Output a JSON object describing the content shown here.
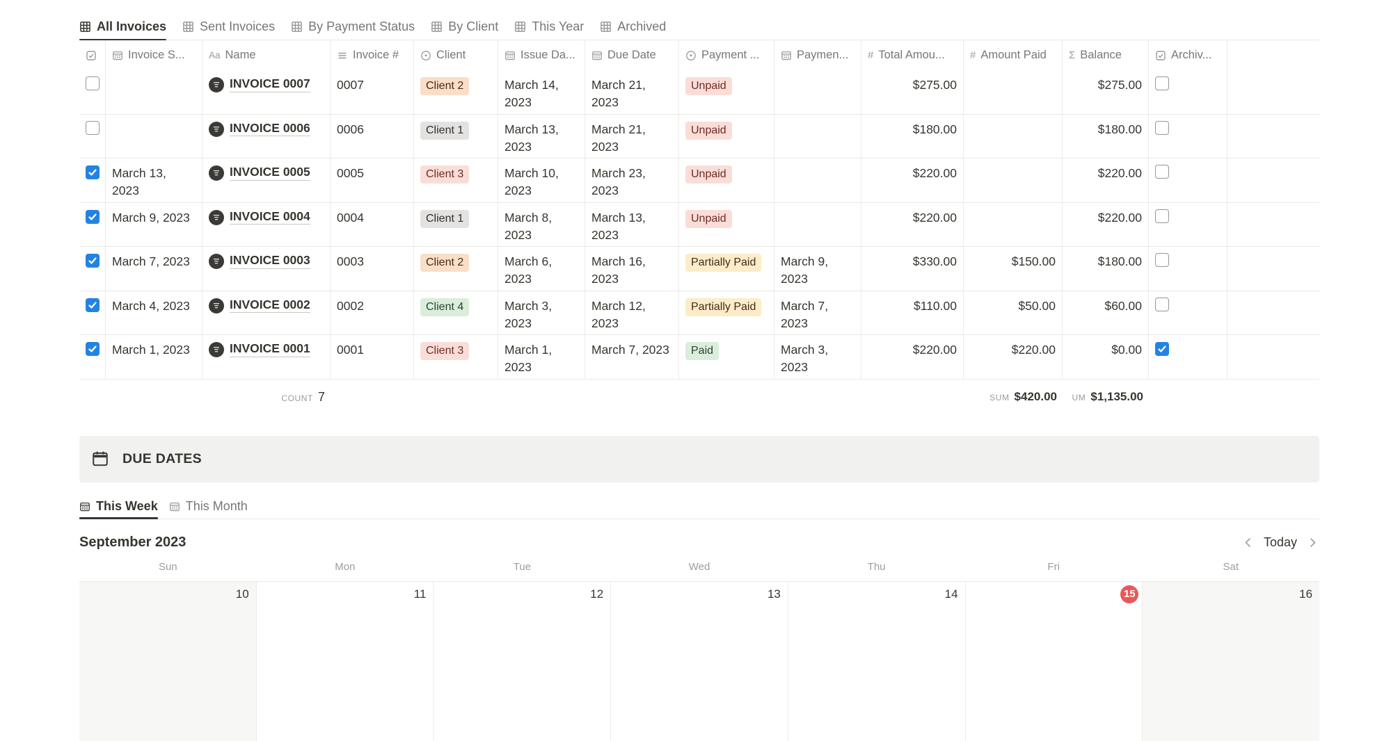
{
  "palette": {
    "accent_blue": "#2383E2",
    "badge_red": "#EB5757",
    "tag": {
      "red": {
        "bg": "#FBDDD8",
        "fg": "#6E2B25"
      },
      "orange": {
        "bg": "#FADEC9",
        "fg": "#49290E"
      },
      "gray": {
        "bg": "#E3E2E0",
        "fg": "#32302C"
      },
      "green": {
        "bg": "#DBEDDB",
        "fg": "#2A4336"
      },
      "yellow": {
        "bg": "#FDECC8",
        "fg": "#402C1B"
      }
    }
  },
  "view_tabs": [
    {
      "label": "All Invoices",
      "active": true
    },
    {
      "label": "Sent Invoices",
      "active": false
    },
    {
      "label": "By Payment Status",
      "active": false
    },
    {
      "label": "By Client",
      "active": false
    },
    {
      "label": "This Year",
      "active": false
    },
    {
      "label": "Archived",
      "active": false
    }
  ],
  "table": {
    "columns": [
      {
        "id": "select",
        "label": "",
        "icon": "checkbox-icon"
      },
      {
        "id": "sent",
        "label": "Invoice S...",
        "icon": "calendar-icon"
      },
      {
        "id": "name",
        "label": "Name",
        "icon": "text-icon"
      },
      {
        "id": "number",
        "label": "Invoice #",
        "icon": "list-icon"
      },
      {
        "id": "client",
        "label": "Client",
        "icon": "select-icon"
      },
      {
        "id": "issue",
        "label": "Issue Da...",
        "icon": "calendar-icon"
      },
      {
        "id": "due",
        "label": "Due Date",
        "icon": "calendar-icon"
      },
      {
        "id": "status",
        "label": "Payment ...",
        "icon": "select-icon"
      },
      {
        "id": "payment_date",
        "label": "Paymen...",
        "icon": "calendar-icon"
      },
      {
        "id": "total",
        "label": "Total Amou...",
        "icon": "number-icon"
      },
      {
        "id": "amount_paid",
        "label": "Amount Paid",
        "icon": "number-icon"
      },
      {
        "id": "balance",
        "label": "Balance",
        "icon": "formula-icon"
      },
      {
        "id": "archived",
        "label": "Archiv...",
        "icon": "checkbox-icon"
      },
      {
        "id": "spacer",
        "label": "",
        "icon": ""
      }
    ],
    "rows": [
      {
        "checked": false,
        "sent": "",
        "name": "INVOICE 0007",
        "number": "0007",
        "client": "Client 2",
        "client_color": "orange",
        "issue": "March 14, 2023",
        "due": "March 21, 2023",
        "status": "Unpaid",
        "status_color": "red",
        "payment_date": "",
        "total": "$275.00",
        "amount_paid": "",
        "balance": "$275.00",
        "archived": false
      },
      {
        "checked": false,
        "sent": "",
        "name": "INVOICE 0006",
        "number": "0006",
        "client": "Client 1",
        "client_color": "gray",
        "issue": "March 13, 2023",
        "due": "March 21, 2023",
        "status": "Unpaid",
        "status_color": "red",
        "payment_date": "",
        "total": "$180.00",
        "amount_paid": "",
        "balance": "$180.00",
        "archived": false
      },
      {
        "checked": true,
        "sent": "March 13, 2023",
        "name": "INVOICE 0005",
        "number": "0005",
        "client": "Client 3",
        "client_color": "red",
        "issue": "March 10, 2023",
        "due": "March 23, 2023",
        "status": "Unpaid",
        "status_color": "red",
        "payment_date": "",
        "total": "$220.00",
        "amount_paid": "",
        "balance": "$220.00",
        "archived": false
      },
      {
        "checked": true,
        "sent": "March 9, 2023",
        "name": "INVOICE 0004",
        "number": "0004",
        "client": "Client 1",
        "client_color": "gray",
        "issue": "March 8, 2023",
        "due": "March 13, 2023",
        "status": "Unpaid",
        "status_color": "red",
        "payment_date": "",
        "total": "$220.00",
        "amount_paid": "",
        "balance": "$220.00",
        "archived": false
      },
      {
        "checked": true,
        "sent": "March 7, 2023",
        "name": "INVOICE 0003",
        "number": "0003",
        "client": "Client 2",
        "client_color": "orange",
        "issue": "March 6, 2023",
        "due": "March 16, 2023",
        "status": "Partially Paid",
        "status_color": "yellow",
        "payment_date": "March 9, 2023",
        "total": "$330.00",
        "amount_paid": "$150.00",
        "balance": "$180.00",
        "archived": false
      },
      {
        "checked": true,
        "sent": "March 4, 2023",
        "name": "INVOICE 0002",
        "number": "0002",
        "client": "Client 4",
        "client_color": "green",
        "issue": "March 3, 2023",
        "due": "March 12, 2023",
        "status": "Partially Paid",
        "status_color": "yellow",
        "payment_date": "March 7, 2023",
        "total": "$110.00",
        "amount_paid": "$50.00",
        "balance": "$60.00",
        "archived": false
      },
      {
        "checked": true,
        "sent": "March 1, 2023",
        "name": "INVOICE 0001",
        "number": "0001",
        "client": "Client 3",
        "client_color": "red",
        "issue": "March 1, 2023",
        "due": "March 7, 2023",
        "status": "Paid",
        "status_color": "green",
        "payment_date": "March 3, 2023",
        "total": "$220.00",
        "amount_paid": "$220.00",
        "balance": "$0.00",
        "archived": true
      }
    ],
    "footer": {
      "count_label": "COUNT",
      "count_value": "7",
      "sum_label": "SUM",
      "sum_value": "$420.00",
      "sum2_label": "UM",
      "sum2_value": "$1,135.00"
    }
  },
  "due_dates": {
    "title": "DUE DATES",
    "tabs": [
      {
        "label": "This Week",
        "active": true
      },
      {
        "label": "This Month",
        "active": false
      }
    ]
  },
  "calendar": {
    "month": "September 2023",
    "today_label": "Today",
    "weekdays": [
      "Sun",
      "Mon",
      "Tue",
      "Wed",
      "Thu",
      "Fri",
      "Sat"
    ],
    "days": [
      {
        "label": "10",
        "weekend": true,
        "today": false
      },
      {
        "label": "11",
        "weekend": false,
        "today": false
      },
      {
        "label": "12",
        "weekend": false,
        "today": false
      },
      {
        "label": "13",
        "weekend": false,
        "today": false
      },
      {
        "label": "14",
        "weekend": false,
        "today": false
      },
      {
        "label": "15",
        "weekend": false,
        "today": true
      },
      {
        "label": "16",
        "weekend": true,
        "today": false
      }
    ]
  }
}
